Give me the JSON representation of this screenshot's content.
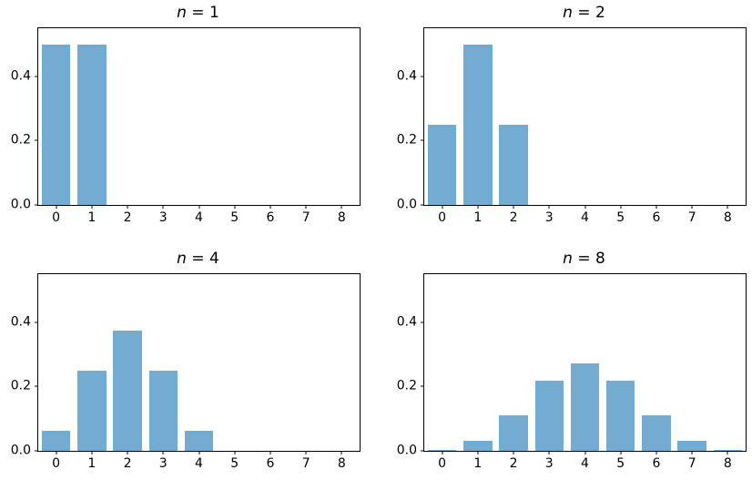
{
  "style": {
    "bar_color": "#74abd1",
    "spine_color": "#000000",
    "text_color": "#000000",
    "background": "#ffffff"
  },
  "chart_data": {
    "type": "bar",
    "layout": "2x2 subplot grid",
    "description": "Binomial distribution PMFs for p = 0.5 with increasing number of trials n",
    "xlim": [
      -0.5,
      8.5
    ],
    "ylim": [
      0,
      0.55
    ],
    "bar_width": 0.8,
    "grid": false,
    "legend": null,
    "xlabel": "",
    "ylabel": "",
    "xticks": [
      0,
      1,
      2,
      3,
      4,
      5,
      6,
      7,
      8
    ],
    "xtick_labels": [
      "0",
      "1",
      "2",
      "3",
      "4",
      "5",
      "6",
      "7",
      "8"
    ],
    "yticks": [
      0.0,
      0.2,
      0.4
    ],
    "ytick_labels": [
      "0.0",
      "0.2",
      "0.4"
    ],
    "subplots": [
      {
        "title": "n = 1",
        "title_italic": "n",
        "title_regular": " = 1",
        "x": [
          0,
          1
        ],
        "values": [
          0.5,
          0.5
        ]
      },
      {
        "title": "n = 2",
        "title_italic": "n",
        "title_regular": " = 2",
        "x": [
          0,
          1,
          2
        ],
        "values": [
          0.25,
          0.5,
          0.25
        ]
      },
      {
        "title": "n = 4",
        "title_italic": "n",
        "title_regular": " = 4",
        "x": [
          0,
          1,
          2,
          3,
          4
        ],
        "values": [
          0.0625,
          0.25,
          0.375,
          0.25,
          0.0625
        ]
      },
      {
        "title": "n = 8",
        "title_italic": "n",
        "title_regular": " = 8",
        "x": [
          0,
          1,
          2,
          3,
          4,
          5,
          6,
          7,
          8
        ],
        "values": [
          0.00390625,
          0.03125,
          0.109375,
          0.21875,
          0.2734375,
          0.21875,
          0.109375,
          0.03125,
          0.00390625
        ]
      }
    ]
  }
}
